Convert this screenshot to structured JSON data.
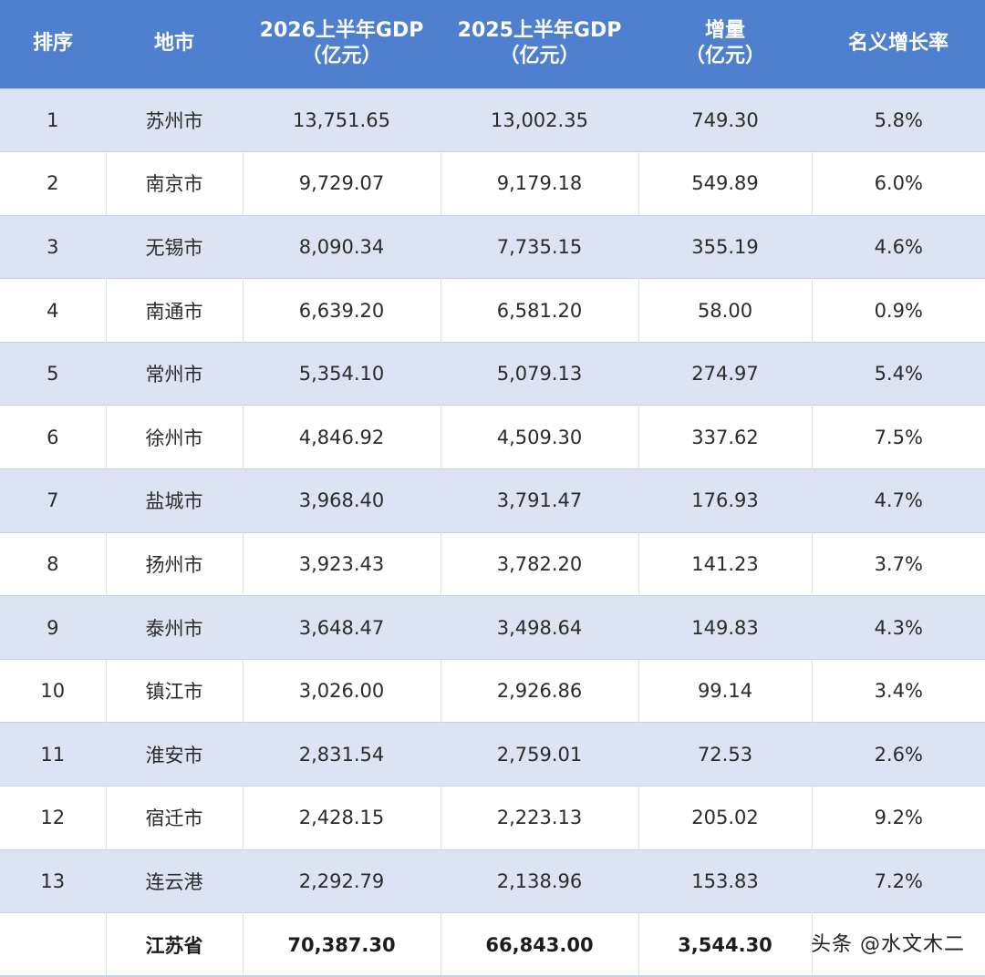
{
  "table": {
    "headers": [
      {
        "line1": "排序",
        "line2": ""
      },
      {
        "line1": "地市",
        "line2": ""
      },
      {
        "line1": "2026上半年GDP",
        "line2": "（亿元）"
      },
      {
        "line1": "2025上半年GDP",
        "line2": "（亿元）"
      },
      {
        "line1": "增量",
        "line2": "（亿元）"
      },
      {
        "line1": "名义增长率",
        "line2": ""
      }
    ],
    "rows": [
      {
        "rank": "1",
        "city": "苏州市",
        "gdp2026": "13,751.65",
        "gdp2025": "13,002.35",
        "increase": "749.30",
        "growth": "5.8%"
      },
      {
        "rank": "2",
        "city": "南京市",
        "gdp2026": "9,729.07",
        "gdp2025": "9,179.18",
        "increase": "549.89",
        "growth": "6.0%"
      },
      {
        "rank": "3",
        "city": "无锡市",
        "gdp2026": "8,090.34",
        "gdp2025": "7,735.15",
        "increase": "355.19",
        "growth": "4.6%"
      },
      {
        "rank": "4",
        "city": "南通市",
        "gdp2026": "6,639.20",
        "gdp2025": "6,581.20",
        "increase": "58.00",
        "growth": "0.9%"
      },
      {
        "rank": "5",
        "city": "常州市",
        "gdp2026": "5,354.10",
        "gdp2025": "5,079.13",
        "increase": "274.97",
        "growth": "5.4%"
      },
      {
        "rank": "6",
        "city": "徐州市",
        "gdp2026": "4,846.92",
        "gdp2025": "4,509.30",
        "increase": "337.62",
        "growth": "7.5%"
      },
      {
        "rank": "7",
        "city": "盐城市",
        "gdp2026": "3,968.40",
        "gdp2025": "3,791.47",
        "increase": "176.93",
        "growth": "4.7%"
      },
      {
        "rank": "8",
        "city": "扬州市",
        "gdp2026": "3,923.43",
        "gdp2025": "3,782.20",
        "increase": "141.23",
        "growth": "3.7%"
      },
      {
        "rank": "9",
        "city": "泰州市",
        "gdp2026": "3,648.47",
        "gdp2025": "3,498.64",
        "increase": "149.83",
        "growth": "4.3%"
      },
      {
        "rank": "10",
        "city": "镇江市",
        "gdp2026": "3,026.00",
        "gdp2025": "2,926.86",
        "increase": "99.14",
        "growth": "3.4%"
      },
      {
        "rank": "11",
        "city": "淮安市",
        "gdp2026": "2,831.54",
        "gdp2025": "2,759.01",
        "increase": "72.53",
        "growth": "2.6%"
      },
      {
        "rank": "12",
        "city": "宿迁市",
        "gdp2026": "2,428.15",
        "gdp2025": "2,223.13",
        "increase": "205.02",
        "growth": "9.2%"
      },
      {
        "rank": "13",
        "city": "连云港",
        "gdp2026": "2,292.79",
        "gdp2025": "2,138.96",
        "increase": "153.83",
        "growth": "7.2%"
      }
    ],
    "total": {
      "rank": "",
      "city": "江苏省",
      "gdp2026": "70,387.30",
      "gdp2025": "66,843.00",
      "increase": "3,544.30",
      "growth": ""
    }
  },
  "watermark": "头条 @水文木二",
  "colors": {
    "header_bg": "#4f7fcf",
    "stripe_bg": "#dce3f3",
    "row_bg": "#ffffff"
  }
}
